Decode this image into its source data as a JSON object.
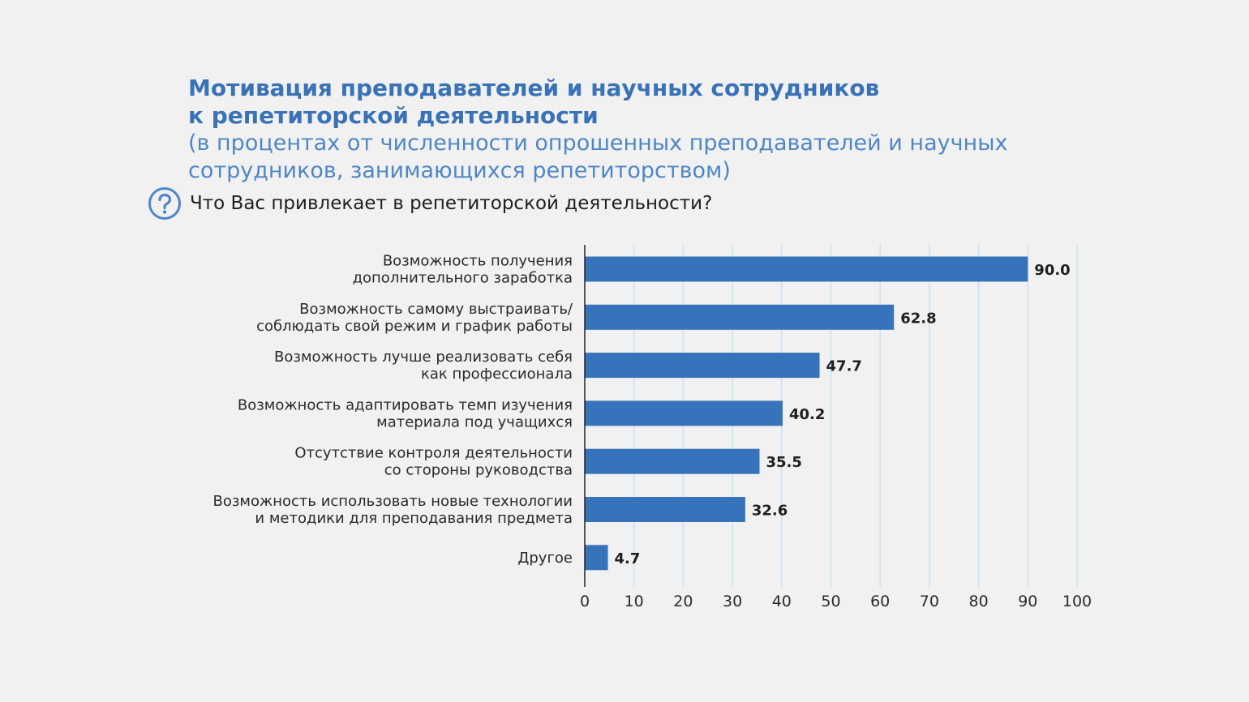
{
  "header": {
    "title_line1": "Мотивация преподавателей и научных сотрудников",
    "title_line2": "к репетиторской деятельности",
    "subtitle_line1": "(в процентах от численности опрошенных преподавателей и научных",
    "subtitle_line2": "сотрудников, занимающихся репетиторством)",
    "question": "Что Вас привлекает в репетиторской деятельности?"
  },
  "icons": {
    "question": "question-circle-icon"
  },
  "colors": {
    "bar": "#3673bb",
    "grid": "#c9e2f3",
    "title": "#3a72b8",
    "axis": "#222222"
  },
  "chart_data": {
    "type": "bar",
    "orientation": "horizontal",
    "categories": [
      [
        "Возможность получения",
        "дополнительного заработка"
      ],
      [
        "Возможность самому выстраивать/",
        "соблюдать свой режим и график работы"
      ],
      [
        "Возможность лучше реализовать себя",
        "как профессионала"
      ],
      [
        "Возможность адаптировать темп изучения",
        "материала под учащихся"
      ],
      [
        "Отсутствие контроля деятельности",
        "со стороны руководства"
      ],
      [
        "Возможность использовать новые технологии",
        "и методики для преподавания предмета"
      ],
      [
        "Другое"
      ]
    ],
    "values": [
      90.0,
      62.8,
      47.7,
      40.2,
      35.5,
      32.6,
      4.7
    ],
    "value_labels": [
      "90.0",
      "62.8",
      "47.7",
      "40.2",
      "35.5",
      "32.6",
      "4.7"
    ],
    "xlim": [
      0,
      100
    ],
    "xticks": [
      0,
      10,
      20,
      30,
      40,
      50,
      60,
      70,
      80,
      90,
      100
    ],
    "grid": true
  }
}
